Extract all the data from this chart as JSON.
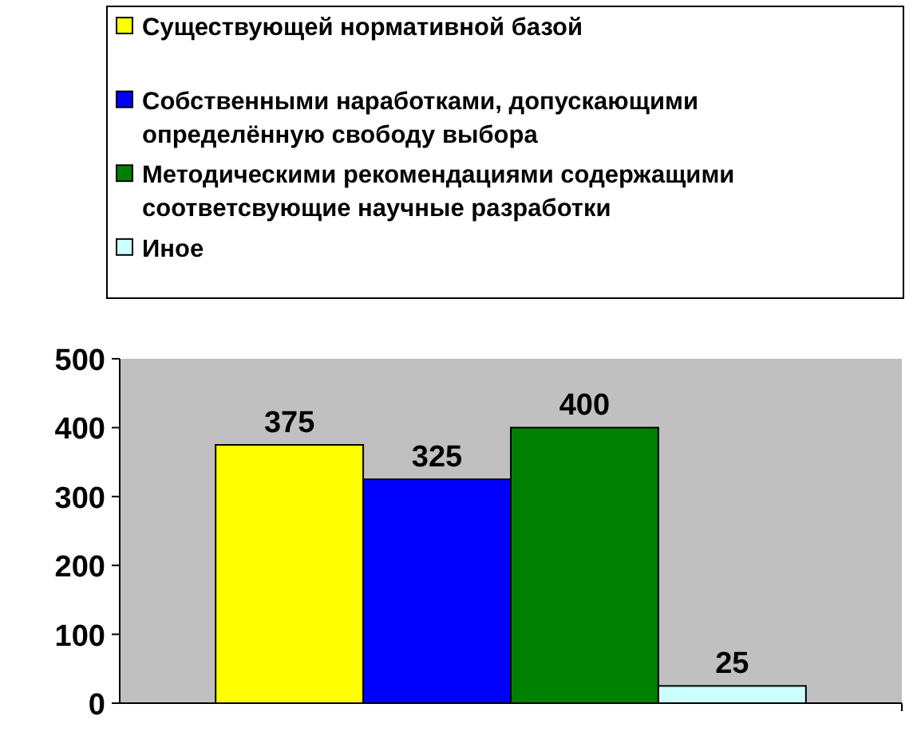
{
  "chart_data": {
    "type": "bar",
    "categories": [
      null
    ],
    "series": [
      {
        "name": "Существующей нормативной базой",
        "color": "#ffff00",
        "values": [
          375
        ]
      },
      {
        "name": "Собственными наработками, допускающими определённую свободу выбора",
        "color": "#0000ff",
        "values": [
          325
        ]
      },
      {
        "name": "Методическими рекомендациями содержащими соответсвующие научные разработки",
        "color": "#008000",
        "values": [
          400
        ]
      },
      {
        "name": "Иное",
        "color": "#ccffff",
        "values": [
          25
        ]
      }
    ],
    "ylim": [
      0,
      500
    ],
    "yticks": [
      0,
      100,
      200,
      300,
      400,
      500
    ],
    "grid": false,
    "legend": "top",
    "data_labels": true
  }
}
